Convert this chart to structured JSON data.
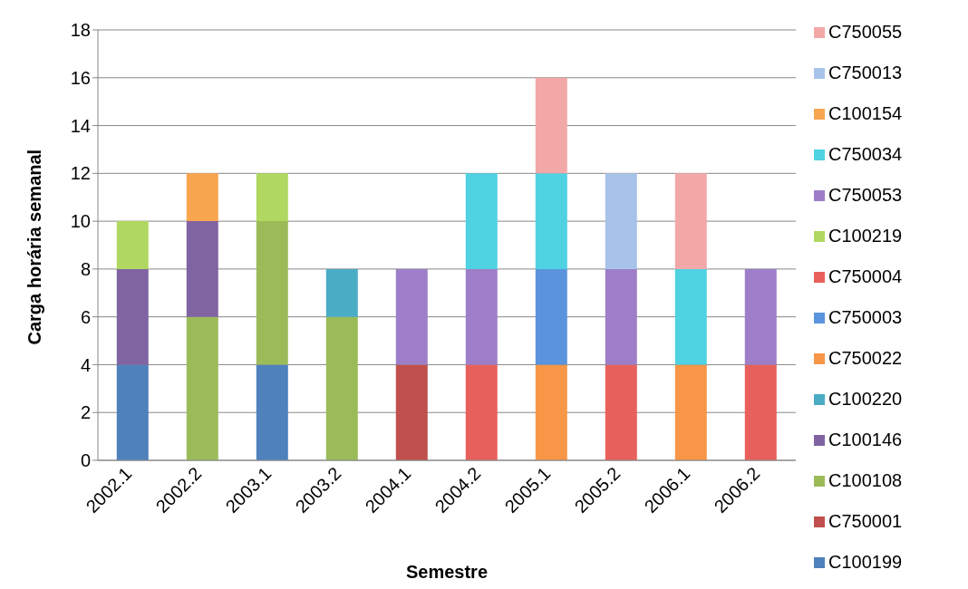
{
  "chart_data": {
    "type": "bar",
    "stacked": true,
    "xlabel": "Semestre",
    "ylabel": "Carga horária semanal",
    "categories": [
      "2002.1",
      "2002.2",
      "2003.1",
      "2003.2",
      "2004.1",
      "2004.2",
      "2005.1",
      "2005.2",
      "2006.1",
      "2006.2"
    ],
    "ylim": [
      0,
      18
    ],
    "yticks": [
      0,
      2,
      4,
      6,
      8,
      10,
      12,
      14,
      16,
      18
    ],
    "grid": "y",
    "legend": "right",
    "series": [
      {
        "name": "C100199",
        "color": "#4f81bd",
        "values": [
          4,
          null,
          4,
          null,
          null,
          null,
          null,
          null,
          null,
          null
        ]
      },
      {
        "name": "C750001",
        "color": "#c0504d",
        "values": [
          null,
          null,
          null,
          null,
          4,
          null,
          null,
          null,
          null,
          null
        ]
      },
      {
        "name": "C100108",
        "color": "#9bbb59",
        "values": [
          null,
          6,
          6,
          6,
          null,
          null,
          null,
          null,
          null,
          null
        ]
      },
      {
        "name": "C100146",
        "color": "#8064a2",
        "values": [
          4,
          4,
          null,
          null,
          null,
          null,
          null,
          null,
          null,
          null
        ]
      },
      {
        "name": "C100220",
        "color": "#4bacc6",
        "values": [
          null,
          null,
          null,
          2,
          null,
          null,
          null,
          null,
          null,
          null
        ]
      },
      {
        "name": "C750022",
        "color": "#f79646",
        "values": [
          null,
          null,
          null,
          null,
          null,
          null,
          4,
          null,
          4,
          null
        ]
      },
      {
        "name": "C750003",
        "color": "#5a94dc",
        "values": [
          null,
          null,
          null,
          null,
          null,
          null,
          4,
          null,
          null,
          null
        ]
      },
      {
        "name": "C750004",
        "color": "#e8605c",
        "values": [
          null,
          null,
          null,
          null,
          null,
          4,
          null,
          4,
          null,
          4
        ]
      },
      {
        "name": "C100219",
        "color": "#b0d860",
        "values": [
          2,
          null,
          2,
          null,
          null,
          null,
          null,
          null,
          null,
          null
        ]
      },
      {
        "name": "C750053",
        "color": "#9e7ec8",
        "values": [
          null,
          null,
          null,
          null,
          4,
          4,
          null,
          4,
          null,
          4
        ]
      },
      {
        "name": "C750034",
        "color": "#4fd2e2",
        "values": [
          null,
          null,
          null,
          null,
          null,
          4,
          4,
          null,
          4,
          null
        ]
      },
      {
        "name": "C100154",
        "color": "#f8a550",
        "values": [
          null,
          2,
          null,
          null,
          null,
          null,
          null,
          null,
          null,
          null
        ]
      },
      {
        "name": "C750013",
        "color": "#a8c3ea",
        "values": [
          null,
          null,
          null,
          null,
          null,
          null,
          null,
          4,
          null,
          null
        ]
      },
      {
        "name": "C750055",
        "color": "#f3a8a8",
        "values": [
          null,
          null,
          null,
          null,
          null,
          null,
          4,
          null,
          4,
          null
        ]
      }
    ]
  }
}
